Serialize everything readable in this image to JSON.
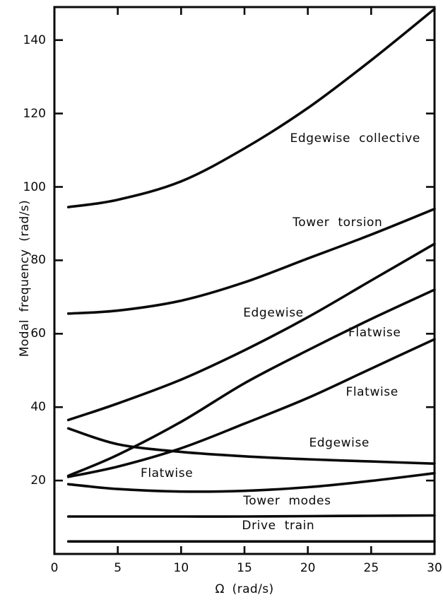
{
  "chart_data": {
    "type": "line",
    "title": "",
    "xlabel": "Ω (rad/s)",
    "ylabel": "Modal frequency (rad/s)",
    "xlim": [
      0,
      30
    ],
    "ylim": [
      0,
      149
    ],
    "x_ticks": [
      0,
      5,
      10,
      15,
      20,
      25,
      30
    ],
    "y_ticks": [
      20,
      40,
      60,
      80,
      100,
      120,
      140
    ],
    "grid": false,
    "legend": "none (curves labeled inline)",
    "line_color": "#0a0a0a",
    "frame": "box with inward ticks on all four sides",
    "series": [
      {
        "name": "Edgewise collective",
        "x": [
          1.1,
          5,
          10,
          15,
          20,
          25,
          30
        ],
        "y": [
          94.5,
          96.5,
          101.5,
          110.5,
          121.5,
          134.5,
          148.5
        ]
      },
      {
        "name": "Tower torsion",
        "x": [
          1.1,
          5,
          10,
          15,
          20,
          25,
          30
        ],
        "y": [
          65.5,
          66.3,
          69.0,
          74.0,
          80.5,
          87.0,
          94.0
        ]
      },
      {
        "name": "Edgewise (rising)",
        "x": [
          1.1,
          5,
          10,
          15,
          20,
          25,
          30
        ],
        "y": [
          36.5,
          41.0,
          47.5,
          55.5,
          64.5,
          74.5,
          84.5
        ]
      },
      {
        "name": "Flatwise (upper)",
        "x": [
          1.1,
          5,
          10,
          15,
          20,
          25,
          30
        ],
        "y": [
          21.3,
          27.0,
          36.0,
          46.5,
          55.5,
          64.0,
          72.0
        ]
      },
      {
        "name": "Flatwise (lower)",
        "x": [
          1.1,
          5,
          10,
          15,
          20,
          25,
          30
        ],
        "y": [
          21.0,
          23.8,
          28.8,
          35.5,
          42.5,
          50.5,
          58.5
        ]
      },
      {
        "name": "Edgewise (descending)",
        "x": [
          1.1,
          5,
          10,
          15,
          20,
          25,
          30
        ],
        "y": [
          34.2,
          29.9,
          27.8,
          26.6,
          25.8,
          25.2,
          24.6
        ]
      },
      {
        "name": "Flatwise (dipping)",
        "x": [
          1.1,
          5,
          10,
          15,
          20,
          25,
          30
        ],
        "y": [
          19.0,
          17.7,
          17.0,
          17.2,
          18.2,
          19.9,
          22.0
        ]
      },
      {
        "name": "Tower modes",
        "x": [
          1.1,
          5,
          10,
          15,
          20,
          25,
          30
        ],
        "y": [
          10.2,
          10.2,
          10.2,
          10.2,
          10.3,
          10.4,
          10.5
        ]
      },
      {
        "name": "Drive train",
        "x": [
          1.1,
          5,
          10,
          15,
          20,
          25,
          30
        ],
        "y": [
          3.4,
          3.4,
          3.4,
          3.4,
          3.4,
          3.4,
          3.4
        ]
      }
    ],
    "annotations": [
      {
        "text": "Edgewise collective",
        "x": 18.6,
        "y": 113.0
      },
      {
        "text": "Tower torsion",
        "x": 18.8,
        "y": 90.0
      },
      {
        "text": "Edgewise",
        "x": 14.9,
        "y": 65.5
      },
      {
        "text": "Flatwise",
        "x": 23.2,
        "y": 60.0
      },
      {
        "text": "Flatwise",
        "x": 23.0,
        "y": 43.8
      },
      {
        "text": "Edgewise",
        "x": 20.1,
        "y": 30.0
      },
      {
        "text": "Flatwise",
        "x": 6.8,
        "y": 21.8
      },
      {
        "text": "Tower modes",
        "x": 14.9,
        "y": 14.2
      },
      {
        "text": "Drive train",
        "x": 14.8,
        "y": 7.6
      }
    ]
  }
}
